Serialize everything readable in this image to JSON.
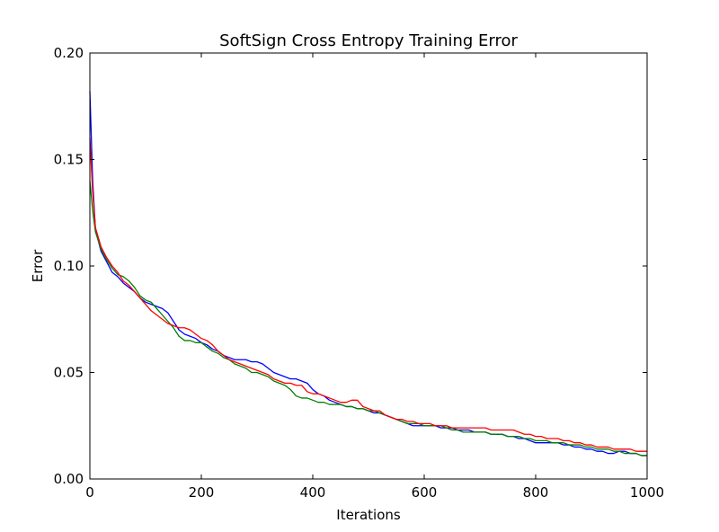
{
  "chart_data": {
    "type": "line",
    "title": "SoftSign Cross Entropy Training Error",
    "xlabel": "Iterations",
    "ylabel": "Error",
    "xlim": [
      0,
      1000
    ],
    "ylim": [
      0.0,
      0.2
    ],
    "x_ticks": [
      0,
      200,
      400,
      600,
      800,
      1000
    ],
    "x_tick_labels": [
      "0",
      "200",
      "400",
      "600",
      "800",
      "1000"
    ],
    "y_ticks": [
      0.0,
      0.05,
      0.1,
      0.15,
      0.2
    ],
    "y_tick_labels": [
      "0.00",
      "0.05",
      "0.10",
      "0.15",
      "0.20"
    ],
    "grid": false,
    "legend": "none",
    "x": [
      0,
      5,
      10,
      20,
      30,
      40,
      50,
      60,
      70,
      80,
      90,
      100,
      110,
      120,
      130,
      140,
      150,
      160,
      170,
      180,
      190,
      200,
      210,
      220,
      230,
      240,
      250,
      260,
      270,
      280,
      290,
      300,
      310,
      320,
      330,
      340,
      350,
      360,
      370,
      380,
      390,
      400,
      410,
      420,
      430,
      440,
      450,
      460,
      470,
      480,
      490,
      500,
      510,
      520,
      530,
      540,
      550,
      560,
      570,
      580,
      590,
      600,
      610,
      620,
      630,
      640,
      650,
      660,
      670,
      680,
      690,
      700,
      710,
      720,
      730,
      740,
      750,
      760,
      770,
      780,
      790,
      800,
      810,
      820,
      830,
      840,
      850,
      860,
      870,
      880,
      890,
      900,
      910,
      920,
      930,
      940,
      950,
      960,
      970,
      980,
      990,
      1000
    ],
    "series": [
      {
        "color": "#0000ff",
        "values": [
          0.182,
          0.14,
          0.117,
          0.107,
          0.102,
          0.097,
          0.095,
          0.092,
          0.09,
          0.088,
          0.085,
          0.083,
          0.082,
          0.081,
          0.08,
          0.078,
          0.074,
          0.07,
          0.068,
          0.067,
          0.066,
          0.064,
          0.063,
          0.061,
          0.06,
          0.058,
          0.057,
          0.056,
          0.056,
          0.056,
          0.055,
          0.055,
          0.054,
          0.052,
          0.05,
          0.049,
          0.048,
          0.047,
          0.047,
          0.046,
          0.045,
          0.042,
          0.04,
          0.039,
          0.037,
          0.036,
          0.035,
          0.034,
          0.034,
          0.033,
          0.033,
          0.032,
          0.031,
          0.031,
          0.03,
          0.029,
          0.028,
          0.027,
          0.026,
          0.025,
          0.025,
          0.025,
          0.025,
          0.025,
          0.024,
          0.024,
          0.024,
          0.023,
          0.023,
          0.023,
          0.022,
          0.022,
          0.022,
          0.021,
          0.021,
          0.021,
          0.02,
          0.02,
          0.019,
          0.019,
          0.018,
          0.017,
          0.017,
          0.017,
          0.017,
          0.017,
          0.016,
          0.016,
          0.015,
          0.015,
          0.014,
          0.014,
          0.013,
          0.013,
          0.012,
          0.012,
          0.013,
          0.013,
          0.012,
          0.012,
          0.011,
          0.011
        ]
      },
      {
        "color": "#008000",
        "values": [
          0.14,
          0.126,
          0.116,
          0.108,
          0.103,
          0.099,
          0.096,
          0.095,
          0.093,
          0.09,
          0.086,
          0.084,
          0.083,
          0.08,
          0.077,
          0.074,
          0.071,
          0.067,
          0.065,
          0.065,
          0.064,
          0.064,
          0.062,
          0.06,
          0.059,
          0.057,
          0.056,
          0.054,
          0.053,
          0.052,
          0.05,
          0.05,
          0.049,
          0.048,
          0.046,
          0.045,
          0.044,
          0.042,
          0.039,
          0.038,
          0.038,
          0.037,
          0.036,
          0.036,
          0.035,
          0.035,
          0.035,
          0.034,
          0.034,
          0.033,
          0.033,
          0.032,
          0.032,
          0.031,
          0.03,
          0.029,
          0.028,
          0.027,
          0.026,
          0.026,
          0.026,
          0.025,
          0.025,
          0.025,
          0.025,
          0.024,
          0.023,
          0.023,
          0.022,
          0.022,
          0.022,
          0.022,
          0.022,
          0.021,
          0.021,
          0.021,
          0.02,
          0.02,
          0.02,
          0.019,
          0.019,
          0.018,
          0.018,
          0.018,
          0.017,
          0.017,
          0.017,
          0.016,
          0.016,
          0.016,
          0.015,
          0.015,
          0.014,
          0.014,
          0.014,
          0.013,
          0.013,
          0.012,
          0.012,
          0.012,
          0.011,
          0.011
        ]
      },
      {
        "color": "#ff0000",
        "values": [
          0.16,
          0.135,
          0.118,
          0.109,
          0.104,
          0.1,
          0.097,
          0.093,
          0.091,
          0.088,
          0.085,
          0.082,
          0.079,
          0.077,
          0.075,
          0.073,
          0.072,
          0.071,
          0.071,
          0.07,
          0.068,
          0.066,
          0.065,
          0.063,
          0.06,
          0.058,
          0.056,
          0.055,
          0.054,
          0.053,
          0.052,
          0.051,
          0.05,
          0.049,
          0.047,
          0.046,
          0.045,
          0.045,
          0.044,
          0.044,
          0.041,
          0.04,
          0.04,
          0.039,
          0.038,
          0.037,
          0.036,
          0.036,
          0.037,
          0.037,
          0.034,
          0.033,
          0.032,
          0.032,
          0.03,
          0.029,
          0.028,
          0.028,
          0.027,
          0.027,
          0.026,
          0.026,
          0.026,
          0.025,
          0.025,
          0.025,
          0.024,
          0.024,
          0.024,
          0.024,
          0.024,
          0.024,
          0.024,
          0.023,
          0.023,
          0.023,
          0.023,
          0.023,
          0.022,
          0.021,
          0.021,
          0.02,
          0.02,
          0.019,
          0.019,
          0.019,
          0.018,
          0.018,
          0.017,
          0.017,
          0.016,
          0.016,
          0.015,
          0.015,
          0.015,
          0.014,
          0.014,
          0.014,
          0.014,
          0.013,
          0.013,
          0.013
        ]
      }
    ]
  }
}
